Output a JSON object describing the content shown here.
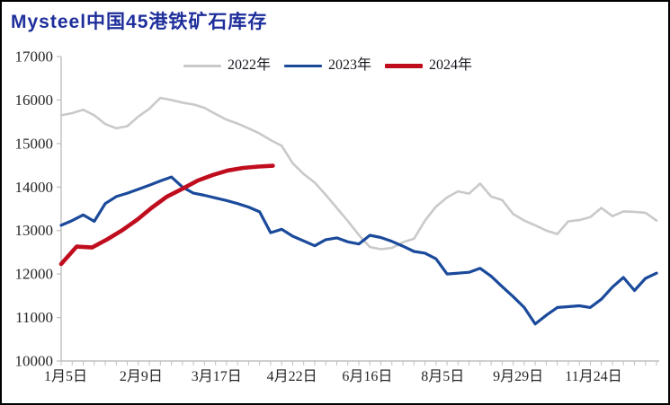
{
  "chart_data": {
    "type": "line",
    "title": "Mysteel中国45港铁矿石库存",
    "ylabel": "",
    "xlabel": "",
    "ylim": [
      10000,
      17000
    ],
    "y_ticks": [
      10000,
      11000,
      12000,
      13000,
      14000,
      15000,
      16000,
      17000
    ],
    "x_tick_labels": [
      "1月5日",
      "2月9日",
      "3月17日",
      "4月22日",
      "6月16日",
      "8月5日",
      "9月29日",
      "11月24日"
    ],
    "x_axis_weeks": 54,
    "grid": false,
    "legend_position": "top-center",
    "axis_color": "#bfbfbf",
    "tick_label_color": "#262626",
    "title_color": "#1f2f9b",
    "series": [
      {
        "name": "2022年",
        "color": "#c9c9c9",
        "width": 2.6,
        "values": [
          15650,
          15700,
          15780,
          15650,
          15450,
          15350,
          15400,
          15620,
          15800,
          16050,
          16000,
          15940,
          15900,
          15820,
          15680,
          15550,
          15460,
          15350,
          15230,
          15080,
          14950,
          14550,
          14300,
          14100,
          13820,
          13520,
          13220,
          12900,
          12620,
          12570,
          12600,
          12730,
          12810,
          13230,
          13550,
          13760,
          13900,
          13850,
          14080,
          13780,
          13700,
          13380,
          13230,
          13120,
          13000,
          12920,
          13210,
          13240,
          13310,
          13520,
          13330,
          13440,
          13430,
          13410,
          13230
        ]
      },
      {
        "name": "2023年",
        "color": "#1b4a9b",
        "width": 3.2,
        "values": [
          13120,
          13230,
          13360,
          13210,
          13620,
          13780,
          13860,
          13950,
          14040,
          14140,
          14230,
          14000,
          13860,
          13810,
          13750,
          13690,
          13620,
          13540,
          13430,
          12950,
          13030,
          12870,
          12760,
          12650,
          12790,
          12830,
          12740,
          12690,
          12890,
          12840,
          12750,
          12640,
          12520,
          12480,
          12350,
          12000,
          12020,
          12040,
          12130,
          11950,
          11710,
          11480,
          11230,
          10850,
          11050,
          11230,
          11250,
          11270,
          11230,
          11420,
          11700,
          11920,
          11620,
          11900,
          12020
        ]
      },
      {
        "name": "2024年",
        "color": "#c00d1e",
        "width": 4.6,
        "x": [
          0,
          1.4,
          2.8,
          4.2,
          5.5,
          6.9,
          8.2,
          9.6,
          11,
          12.4,
          13.8,
          15.1,
          16.5,
          17.9,
          19.2
        ],
        "values": [
          12230,
          12630,
          12610,
          12800,
          13000,
          13250,
          13520,
          13780,
          13960,
          14150,
          14280,
          14380,
          14440,
          14470,
          14490
        ]
      }
    ]
  }
}
